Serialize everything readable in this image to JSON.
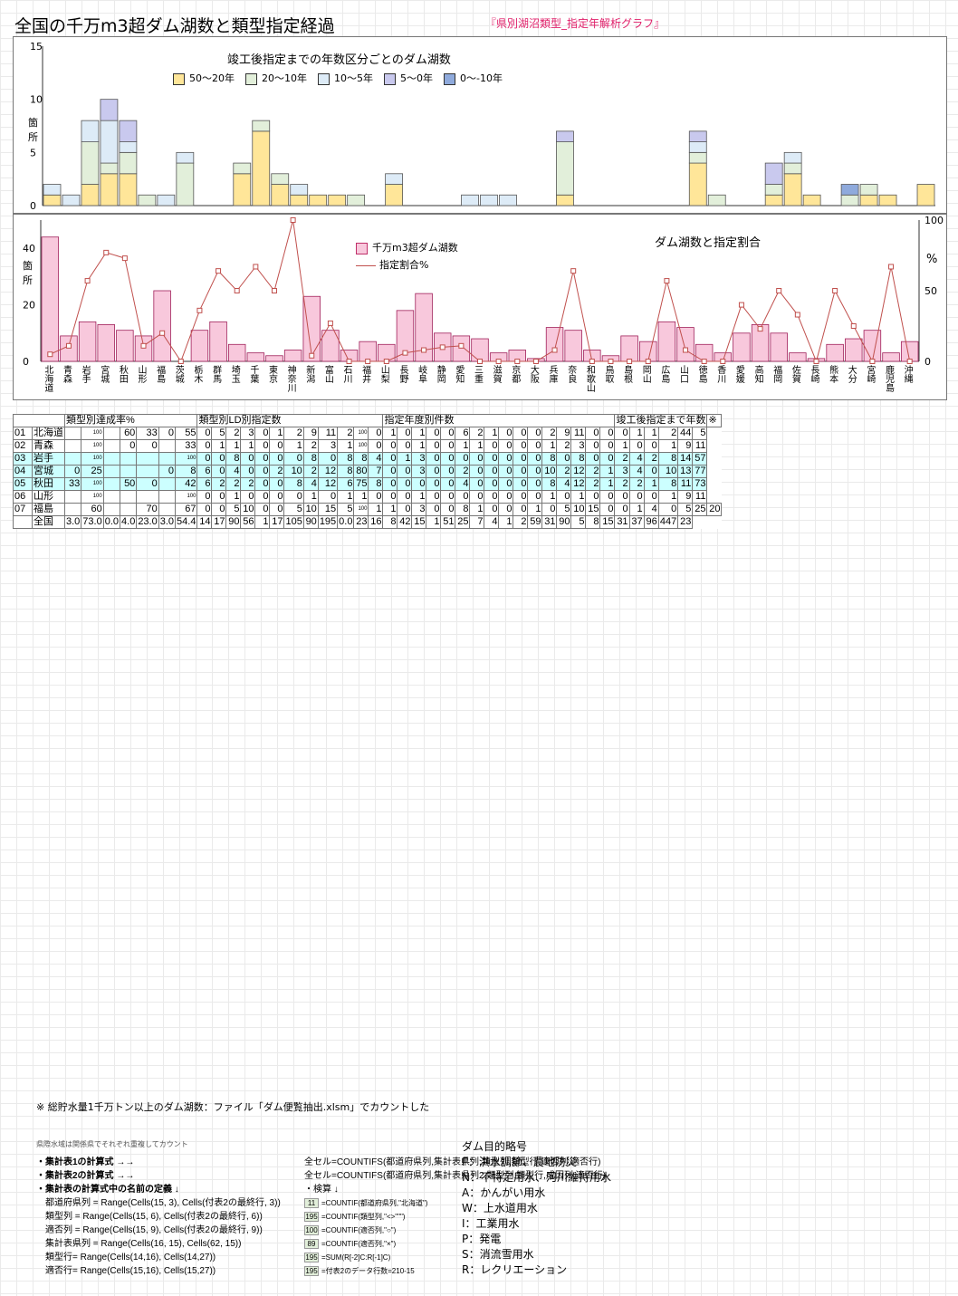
{
  "title": "全国の千万m3超ダム湖数と類型指定経過",
  "subtitle": "『県別湖沼類型_指定年解析グラフ』",
  "chart1": {
    "title": "竣工後指定までの年数区分ごとのダム湖数",
    "ylabel": "箇所",
    "legend": [
      "50～20年",
      "20～10年",
      "10～5年",
      "5～0年",
      "0～-10年"
    ],
    "colors": [
      "#ffe699",
      "#e2efda",
      "#ddebf7",
      "#c9c9ee",
      "#8faadc"
    ],
    "yticks": [
      "0",
      "5",
      "10",
      "15"
    ],
    "series_values": [
      [
        1,
        0,
        2,
        3,
        3,
        0,
        0,
        0,
        0,
        0,
        3,
        7,
        2,
        1,
        1,
        1,
        0,
        0,
        2,
        0,
        0,
        0,
        0,
        0,
        0,
        0,
        0,
        1,
        0,
        0,
        0,
        0,
        0,
        0,
        4,
        0,
        0,
        0,
        1,
        3,
        1,
        0,
        0,
        1,
        1,
        0,
        2
      ],
      [
        0,
        0,
        4,
        1,
        2,
        1,
        0,
        4,
        0,
        0,
        1,
        1,
        1,
        0,
        0,
        0,
        1,
        0,
        0,
        0,
        0,
        0,
        0,
        0,
        0,
        0,
        0,
        5,
        0,
        0,
        0,
        0,
        0,
        0,
        1,
        1,
        0,
        0,
        1,
        1,
        0,
        0,
        1,
        1,
        0,
        0,
        0
      ],
      [
        1,
        1,
        2,
        4,
        1,
        0,
        1,
        1,
        0,
        0,
        0,
        0,
        0,
        1,
        0,
        0,
        0,
        0,
        1,
        0,
        0,
        0,
        1,
        1,
        1,
        0,
        0,
        0,
        0,
        0,
        0,
        0,
        0,
        0,
        1,
        0,
        0,
        0,
        0,
        1,
        0,
        0,
        0,
        0,
        0,
        0,
        0
      ],
      [
        0,
        0,
        0,
        2,
        2,
        0,
        0,
        0,
        0,
        0,
        0,
        0,
        0,
        0,
        0,
        0,
        0,
        0,
        0,
        0,
        0,
        0,
        0,
        0,
        0,
        0,
        0,
        1,
        0,
        0,
        0,
        0,
        0,
        0,
        1,
        0,
        0,
        0,
        2,
        0,
        0,
        0,
        0,
        0,
        0,
        0,
        0
      ],
      [
        0,
        0,
        0,
        0,
        0,
        0,
        0,
        0,
        0,
        0,
        0,
        0,
        0,
        0,
        0,
        0,
        0,
        0,
        0,
        0,
        0,
        0,
        0,
        0,
        0,
        0,
        0,
        0,
        0,
        0,
        0,
        0,
        0,
        0,
        0,
        0,
        0,
        0,
        0,
        0,
        0,
        0,
        1,
        0,
        0,
        0,
        0
      ]
    ]
  },
  "chart2": {
    "title": "ダム湖数と指定割合",
    "ylabel": "箇所",
    "y2label": "%",
    "legend_bar": "千万m3超ダム湖数",
    "legend_line": "指定割合%",
    "yticks": [
      "0",
      "20",
      "40"
    ],
    "y2ticks": [
      "0",
      "50",
      "100"
    ],
    "prefectures": [
      "北海道",
      "青森",
      "岩手",
      "宮城",
      "秋田",
      "山形",
      "福島",
      "茨城",
      "栃木",
      "群馬",
      "埼玉",
      "千葉",
      "東京",
      "神奈川",
      "新潟",
      "富山",
      "石川",
      "福井",
      "山梨",
      "長野",
      "岐阜",
      "静岡",
      "愛知",
      "三重",
      "滋賀",
      "京都",
      "大阪",
      "兵庫",
      "奈良",
      "和歌山",
      "鳥取",
      "島根",
      "岡山",
      "広島",
      "山口",
      "徳島",
      "香川",
      "愛媛",
      "高知",
      "福岡",
      "佐賀",
      "長崎",
      "熊本",
      "大分",
      "宮崎",
      "鹿児島",
      "沖縄"
    ],
    "dam_counts": [
      44,
      9,
      14,
      13,
      11,
      9,
      25,
      0,
      11,
      14,
      6,
      3,
      2,
      4,
      23,
      11,
      4,
      7,
      6,
      18,
      24,
      10,
      9,
      8,
      3,
      4,
      1,
      12,
      11,
      4,
      2,
      9,
      7,
      14,
      12,
      6,
      3,
      10,
      13,
      10,
      3,
      1,
      6,
      8,
      11,
      3,
      7
    ],
    "ratio_pct": [
      5,
      11,
      57,
      77,
      73,
      11,
      20,
      0,
      36,
      64,
      50,
      67,
      50,
      100,
      4,
      27,
      0,
      0,
      0,
      6,
      8,
      10,
      11,
      0,
      0,
      0,
      0,
      8,
      64,
      0,
      0,
      0,
      0,
      57,
      8,
      0,
      0,
      40,
      23,
      50,
      33,
      0,
      50,
      25,
      0,
      67,
      0
    ]
  },
  "table": {
    "group_headers": [
      "類型別達成率%",
      "類型別LD別指定数",
      "指定年度別件数",
      "竣工後指定まで年数",
      "※"
    ],
    "rows": [
      [
        "01",
        "北海道",
        "",
        "100",
        "",
        "60",
        "33",
        "0",
        "55",
        "0",
        "5",
        "2",
        "3",
        "0",
        "1",
        "2",
        "9",
        "11",
        "2",
        "100",
        "0",
        "1",
        "0",
        "1",
        "0",
        "0",
        "6",
        "2",
        "1",
        "0",
        "0",
        "0",
        "2",
        "9",
        "11",
        "0",
        "0",
        "0",
        "1",
        "1",
        "2",
        "44",
        "5"
      ],
      [
        "02",
        "青森",
        "",
        "100",
        "",
        "0",
        "0",
        "",
        "33",
        "0",
        "1",
        "1",
        "1",
        "0",
        "0",
        "1",
        "2",
        "3",
        "1",
        "100",
        "0",
        "0",
        "0",
        "1",
        "0",
        "0",
        "1",
        "1",
        "0",
        "0",
        "0",
        "0",
        "1",
        "2",
        "3",
        "0",
        "0",
        "1",
        "0",
        "0",
        "1",
        "9",
        "11"
      ],
      [
        "03",
        "岩手",
        "",
        "100",
        "",
        "",
        "",
        "",
        "100",
        "0",
        "0",
        "8",
        "0",
        "0",
        "0",
        "0",
        "8",
        "0",
        "8",
        "8",
        "4",
        "0",
        "1",
        "3",
        "0",
        "0",
        "0",
        "0",
        "0",
        "0",
        "0",
        "0",
        "8",
        "0",
        "8",
        "0",
        "0",
        "2",
        "4",
        "2",
        "8",
        "14",
        "57"
      ],
      [
        "04",
        "宮城",
        "0",
        "25",
        "",
        "",
        "",
        "0",
        "8",
        "6",
        "0",
        "4",
        "0",
        "0",
        "2",
        "10",
        "2",
        "12",
        "8",
        "80",
        "7",
        "0",
        "0",
        "3",
        "0",
        "0",
        "2",
        "0",
        "0",
        "0",
        "0",
        "0",
        "10",
        "2",
        "12",
        "2",
        "1",
        "3",
        "4",
        "0",
        "10",
        "13",
        "77"
      ],
      [
        "05",
        "秋田",
        "33",
        "100",
        "",
        "50",
        "0",
        "",
        "42",
        "6",
        "2",
        "2",
        "2",
        "0",
        "0",
        "8",
        "4",
        "12",
        "6",
        "75",
        "8",
        "0",
        "0",
        "0",
        "0",
        "0",
        "4",
        "0",
        "0",
        "0",
        "0",
        "0",
        "8",
        "4",
        "12",
        "2",
        "1",
        "2",
        "2",
        "1",
        "8",
        "11",
        "73"
      ],
      [
        "06",
        "山形",
        "",
        "100",
        "",
        "",
        "",
        "",
        "100",
        "0",
        "0",
        "1",
        "0",
        "0",
        "0",
        "0",
        "1",
        "0",
        "1",
        "1",
        "0",
        "0",
        "0",
        "1",
        "0",
        "0",
        "0",
        "0",
        "0",
        "0",
        "0",
        "0",
        "1",
        "0",
        "1",
        "0",
        "0",
        "0",
        "0",
        "0",
        "1",
        "9",
        "11"
      ],
      [
        "07",
        "福島",
        "",
        "60",
        "",
        "",
        "70",
        "",
        "67",
        "0",
        "0",
        "5",
        "10",
        "0",
        "0",
        "5",
        "10",
        "15",
        "5",
        "100",
        "1",
        "1",
        "0",
        "3",
        "0",
        "0",
        "8",
        "1",
        "0",
        "0",
        "0",
        "1",
        "0",
        "5",
        "10",
        "15",
        "0",
        "0",
        "1",
        "4",
        "0",
        "5",
        "25",
        "20"
      ]
    ],
    "total_label": "全国",
    "total_row": [
      "3.0",
      "73.0",
      "0.0",
      "4.0",
      "23.0",
      "3.0",
      "54.4",
      "14",
      "17",
      "90",
      "56",
      "1",
      "17",
      "105",
      "90",
      "195",
      "0.0",
      "23",
      "16",
      "8",
      "42",
      "15",
      "1",
      "51",
      "25",
      "7",
      "4",
      "1",
      "2",
      "59",
      "31",
      "90",
      "5",
      "8",
      "15",
      "31",
      "37",
      "96",
      "447",
      "23"
    ]
  },
  "note": "※ 総貯水量1千万トン以上のダム湖数：ファイル「ダム便覧抽出.xlsm」でカウントした",
  "mini_note": "県際水域は関係県でそれぞれ重複してカウント",
  "formulas": [
    {
      "label": "・集計表1の計算式 →→",
      "text": "全セル=COUNTIFS(都道府県列,集計表県列,類型列,類型行,適否列,適否行)"
    },
    {
      "label": "・集計表2の計算式 →→",
      "text": "全セル=COUNTIFS(都道府県列,集計表県列2,類型列,類型行,成因列,適否行)"
    },
    {
      "label": "・集計表の計算式中の名前の定義 ↓",
      "text": "・検算 ↓"
    }
  ],
  "definitions": [
    {
      "def": "都道府県列 = Range(Cells(15, 3), Cells(付表2の最終行, 3))",
      "val": "11",
      "check": "=COUNTIF(都道府県列,\"北海道\")"
    },
    {
      "def": "類型列 = Range(Cells(15, 6), Cells(付表2の最終行, 6))",
      "val": "195",
      "check": "=COUNTIF(類型列,\"<>\"\"\")"
    },
    {
      "def": "適否列 = Range(Cells(15, 9), Cells(付表2の最終行, 9))",
      "val": "100",
      "check": "=COUNTIF(適否列,\"○\")"
    },
    {
      "def": "集計表県列 = Range(Cells(16, 15), Cells(62, 15))",
      "val": "89",
      "check": "=COUNTIF(適否列,\"×\")"
    },
    {
      "def": "類型行= Range(Cells(14,16), Cells(14,27))",
      "val": "195",
      "check": "=SUM(R[-2]C:R[-1]C)"
    },
    {
      "def": "適否行= Range(Cells(15,16), Cells(15,27))",
      "val": "195",
      "check": "=付表2のデータ行数=210-15"
    }
  ],
  "purpose_title": "ダム目的略号",
  "purposes": [
    "F：洪水調節、農地防災",
    "N：不特定用水、河川維持用水",
    "A：かんがい用水",
    "W：上水道用水",
    "I：工業用水",
    "P：発電",
    "S：消流雪用水",
    "R：レクリエーション"
  ]
}
